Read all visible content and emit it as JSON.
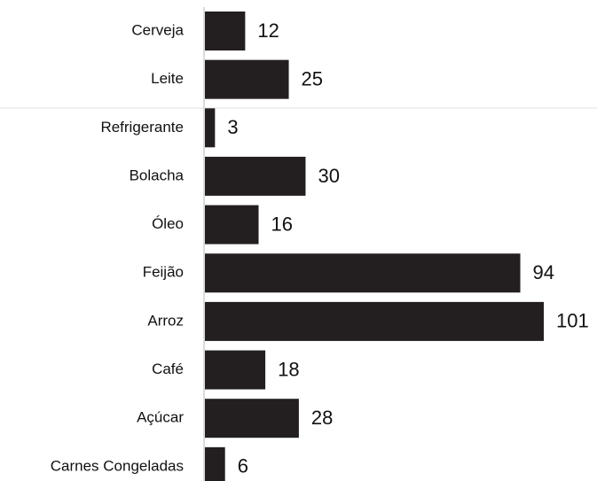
{
  "chart_data": {
    "type": "bar",
    "orientation": "horizontal",
    "categories": [
      "Cerveja",
      "Leite",
      "Refrigerante",
      "Bolacha",
      "Óleo",
      "Feijão",
      "Arroz",
      "Café",
      "Açúcar",
      "Carnes Congeladas"
    ],
    "values": [
      12,
      25,
      3,
      30,
      16,
      94,
      101,
      18,
      28,
      6
    ],
    "color": "#231f20"
  }
}
